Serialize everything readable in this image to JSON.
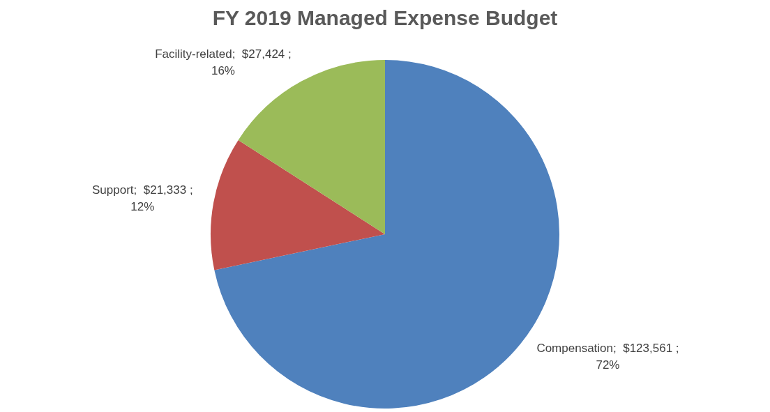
{
  "chart_data": {
    "type": "pie",
    "title": "FY 2019 Managed Expense Budget",
    "categories": [
      "Compensation",
      "Support",
      "Facility-related"
    ],
    "values": [
      123561,
      21333,
      27424
    ],
    "value_labels": [
      "$123,561 ; 72%",
      "$21,333 ; 12%",
      "$27,424 ; 16%"
    ],
    "colors": [
      "#4f81bd",
      "#c0504d",
      "#9bbb59"
    ],
    "legend": false
  }
}
